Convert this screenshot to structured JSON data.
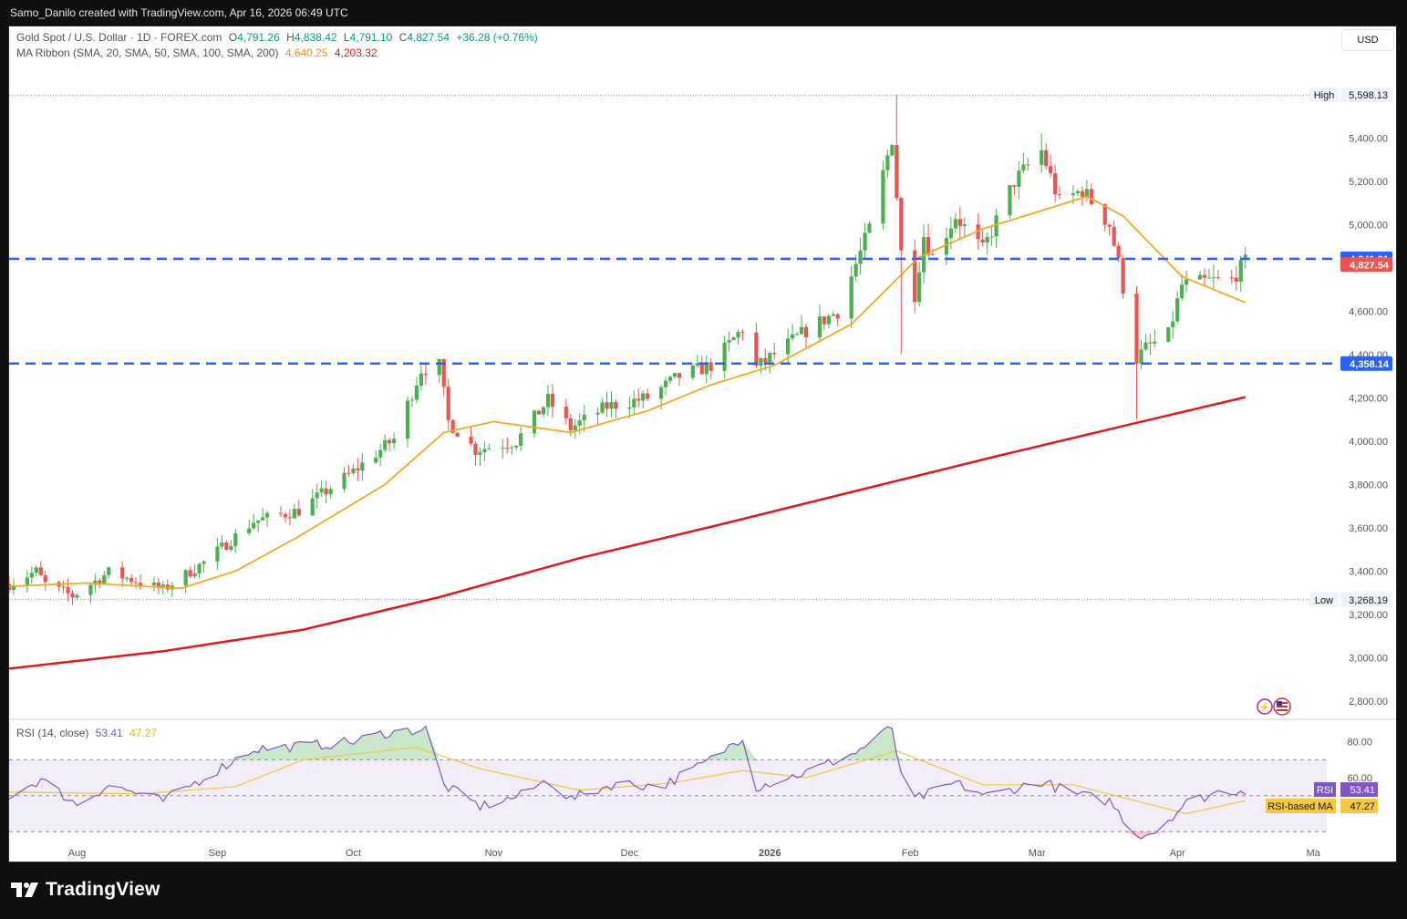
{
  "attribution": "Samo_Danilo created with TradingView.com, Apr 16, 2026 06:49 UTC",
  "brand": "TradingView",
  "currency": "USD",
  "legend": {
    "symbol": "Gold Spot / U.S. Dollar · 1D · FOREX.com",
    "open_label": "O",
    "open": "4,791.26",
    "high_label": "H",
    "high": "4,838.42",
    "low_label": "L",
    "low": "4,791.10",
    "close_label": "C",
    "close": "4,827.54",
    "change": "+36.28 (+0.76%)",
    "ma_label": "MA Ribbon (SMA, 20, SMA, 50, SMA, 100, SMA, 200)",
    "ma20_value": "4,640.25",
    "ma200_value": "4,203.32"
  },
  "rsi_legend": {
    "label": "RSI (14, close)",
    "rsi": "53.41",
    "rsi_ma": "47.27"
  },
  "colors": {
    "up": "#4caf50",
    "down": "#ef5350",
    "ma20": "#f5a623",
    "ma200": "#e0191c",
    "level": "#2962ff",
    "rsi": "#7e57c2",
    "rsi_ma": "#f5c842"
  },
  "chart_data": {
    "type": "candlestick",
    "title": "Gold Spot / U.S. Dollar · 1D · FOREX.com",
    "timeframe": "1D",
    "x_labels": [
      "Aug",
      "Sep",
      "Oct",
      "Nov",
      "Dec",
      "2026",
      "Feb",
      "Mar",
      "Apr",
      "Ma"
    ],
    "y_ticks": [
      "2,800.00",
      "3,000.00",
      "3,200.00",
      "3,400.00",
      "3,600.00",
      "3,800.00",
      "4,000.00",
      "4,200.00",
      "4,400.00",
      "4,600.00",
      "4,800.00",
      "5,000.00",
      "5,200.00",
      "5,400.00"
    ],
    "ylim": [
      2720,
      5700
    ],
    "high": {
      "label": "High",
      "value": "5,598.13"
    },
    "low": {
      "label": "Low",
      "value": "3,268.19"
    },
    "horizontal_levels": [
      {
        "value": 4841.91,
        "label": "4,841.91",
        "style": "dashed"
      },
      {
        "value": 4358.14,
        "label": "4,358.14",
        "style": "dashed"
      }
    ],
    "last_price": {
      "value": 4827.54,
      "label": "4,827.54"
    },
    "anchors": [
      {
        "date": "2025-07-17",
        "price": 3340
      },
      {
        "date": "2025-07-23",
        "price": 3400
      },
      {
        "date": "2025-07-25",
        "price": 3340
      },
      {
        "date": "2025-07-31",
        "price": 3285
      },
      {
        "date": "2025-08-08",
        "price": 3395
      },
      {
        "date": "2025-08-20",
        "price": 3315
      },
      {
        "date": "2025-08-29",
        "price": 3440
      },
      {
        "date": "2025-09-09",
        "price": 3630
      },
      {
        "date": "2025-09-19",
        "price": 3680
      },
      {
        "date": "2025-10-01",
        "price": 3860
      },
      {
        "date": "2025-10-10",
        "price": 4010
      },
      {
        "date": "2025-10-16",
        "price": 4330
      },
      {
        "date": "2025-10-20",
        "price": 4350
      },
      {
        "date": "2025-10-22",
        "price": 4090
      },
      {
        "date": "2025-10-28",
        "price": 3960
      },
      {
        "date": "2025-11-06",
        "price": 4000
      },
      {
        "date": "2025-11-13",
        "price": 4190
      },
      {
        "date": "2025-11-18",
        "price": 4060
      },
      {
        "date": "2025-11-26",
        "price": 4160
      },
      {
        "date": "2025-12-05",
        "price": 4200
      },
      {
        "date": "2025-12-12",
        "price": 4300
      },
      {
        "date": "2025-12-19",
        "price": 4350
      },
      {
        "date": "2025-12-26",
        "price": 4520
      },
      {
        "date": "2025-12-29",
        "price": 4340
      },
      {
        "date": "2026-01-09",
        "price": 4510
      },
      {
        "date": "2026-01-16",
        "price": 4600
      },
      {
        "date": "2026-01-23",
        "price": 4980
      },
      {
        "date": "2026-01-28",
        "price": 5400
      },
      {
        "date": "2026-01-30",
        "price": 4870
      },
      {
        "date": "2026-02-02",
        "price": 4680
      },
      {
        "date": "2026-02-04",
        "price": 4950
      },
      {
        "date": "2026-02-06",
        "price": 4850
      },
      {
        "date": "2026-02-11",
        "price": 5040
      },
      {
        "date": "2026-02-17",
        "price": 4880
      },
      {
        "date": "2026-02-24",
        "price": 5200
      },
      {
        "date": "2026-03-02",
        "price": 5340
      },
      {
        "date": "2026-03-06",
        "price": 5100
      },
      {
        "date": "2026-03-11",
        "price": 5160
      },
      {
        "date": "2026-03-17",
        "price": 5000
      },
      {
        "date": "2026-03-19",
        "price": 4820
      },
      {
        "date": "2026-03-23",
        "price": 4380
      },
      {
        "date": "2026-03-25",
        "price": 4430
      },
      {
        "date": "2026-03-30",
        "price": 4490
      },
      {
        "date": "2026-04-02",
        "price": 4720
      },
      {
        "date": "2026-04-08",
        "price": 4740
      },
      {
        "date": "2026-04-13",
        "price": 4745
      },
      {
        "date": "2026-04-16",
        "price": 4827.54
      }
    ],
    "ma20": [
      {
        "date": "2025-07-17",
        "price": 3330
      },
      {
        "date": "2025-08-03",
        "price": 3345
      },
      {
        "date": "2025-08-24",
        "price": 3320
      },
      {
        "date": "2025-09-05",
        "price": 3400
      },
      {
        "date": "2025-09-19",
        "price": 3560
      },
      {
        "date": "2025-10-08",
        "price": 3800
      },
      {
        "date": "2025-10-21",
        "price": 4040
      },
      {
        "date": "2025-11-01",
        "price": 4090
      },
      {
        "date": "2025-11-18",
        "price": 4040
      },
      {
        "date": "2025-12-05",
        "price": 4140
      },
      {
        "date": "2025-12-19",
        "price": 4260
      },
      {
        "date": "2026-01-02",
        "price": 4350
      },
      {
        "date": "2026-01-19",
        "price": 4540
      },
      {
        "date": "2026-02-03",
        "price": 4850
      },
      {
        "date": "2026-02-17",
        "price": 4980
      },
      {
        "date": "2026-03-06",
        "price": 5090
      },
      {
        "date": "2026-03-12",
        "price": 5130
      },
      {
        "date": "2026-03-20",
        "price": 5040
      },
      {
        "date": "2026-04-02",
        "price": 4760
      },
      {
        "date": "2026-04-16",
        "price": 4640.25
      }
    ],
    "ma200": [
      {
        "date": "2025-07-17",
        "price": 2950
      },
      {
        "date": "2025-08-20",
        "price": 3030
      },
      {
        "date": "2025-09-20",
        "price": 3130
      },
      {
        "date": "2025-10-20",
        "price": 3280
      },
      {
        "date": "2025-11-20",
        "price": 3460
      },
      {
        "date": "2025-12-20",
        "price": 3610
      },
      {
        "date": "2026-01-20",
        "price": 3770
      },
      {
        "date": "2026-02-20",
        "price": 3930
      },
      {
        "date": "2026-03-20",
        "price": 4070
      },
      {
        "date": "2026-04-16",
        "price": 4203.32
      }
    ],
    "rsi": {
      "label": "RSI (14, close)",
      "ticks": [
        "80.00",
        "60.00"
      ],
      "levels": [
        70,
        50,
        30
      ],
      "ylim": [
        25,
        92
      ],
      "value": "53.41",
      "ma_value": "47.27",
      "series_label": "RSI",
      "ma_label": "RSI-based MA",
      "series": [
        {
          "date": "2025-07-17",
          "value": 50
        },
        {
          "date": "2025-07-24",
          "value": 59
        },
        {
          "date": "2025-08-01",
          "value": 45
        },
        {
          "date": "2025-08-08",
          "value": 56
        },
        {
          "date": "2025-08-20",
          "value": 47
        },
        {
          "date": "2025-08-29",
          "value": 60
        },
        {
          "date": "2025-09-09",
          "value": 76
        },
        {
          "date": "2025-09-22",
          "value": 78
        },
        {
          "date": "2025-10-01",
          "value": 80
        },
        {
          "date": "2025-10-08",
          "value": 85
        },
        {
          "date": "2025-10-17",
          "value": 87
        },
        {
          "date": "2025-10-21",
          "value": 56
        },
        {
          "date": "2025-10-29",
          "value": 44
        },
        {
          "date": "2025-11-07",
          "value": 50
        },
        {
          "date": "2025-11-13",
          "value": 59
        },
        {
          "date": "2025-11-18",
          "value": 48
        },
        {
          "date": "2025-11-28",
          "value": 57
        },
        {
          "date": "2025-12-08",
          "value": 55
        },
        {
          "date": "2025-12-19",
          "value": 70
        },
        {
          "date": "2025-12-26",
          "value": 83
        },
        {
          "date": "2025-12-29",
          "value": 55
        },
        {
          "date": "2026-01-09",
          "value": 63
        },
        {
          "date": "2026-01-20",
          "value": 74
        },
        {
          "date": "2026-01-28",
          "value": 88
        },
        {
          "date": "2026-01-30",
          "value": 60
        },
        {
          "date": "2026-02-02",
          "value": 48
        },
        {
          "date": "2026-02-11",
          "value": 57
        },
        {
          "date": "2026-02-18",
          "value": 50
        },
        {
          "date": "2026-03-02",
          "value": 58
        },
        {
          "date": "2026-03-09",
          "value": 51
        },
        {
          "date": "2026-03-17",
          "value": 47
        },
        {
          "date": "2026-03-23",
          "value": 28
        },
        {
          "date": "2026-03-27",
          "value": 30
        },
        {
          "date": "2026-04-03",
          "value": 46
        },
        {
          "date": "2026-04-10",
          "value": 52
        },
        {
          "date": "2026-04-16",
          "value": 53.41
        }
      ],
      "ma": [
        {
          "date": "2025-07-17",
          "value": 52
        },
        {
          "date": "2025-08-15",
          "value": 51
        },
        {
          "date": "2025-09-05",
          "value": 55
        },
        {
          "date": "2025-09-20",
          "value": 70
        },
        {
          "date": "2025-10-15",
          "value": 77
        },
        {
          "date": "2025-10-29",
          "value": 65
        },
        {
          "date": "2025-11-20",
          "value": 53
        },
        {
          "date": "2025-12-10",
          "value": 57
        },
        {
          "date": "2025-12-26",
          "value": 64
        },
        {
          "date": "2026-01-09",
          "value": 60
        },
        {
          "date": "2026-01-29",
          "value": 75
        },
        {
          "date": "2026-02-17",
          "value": 56
        },
        {
          "date": "2026-03-09",
          "value": 56
        },
        {
          "date": "2026-03-23",
          "value": 47
        },
        {
          "date": "2026-04-03",
          "value": 40
        },
        {
          "date": "2026-04-16",
          "value": 47.27
        }
      ]
    }
  }
}
